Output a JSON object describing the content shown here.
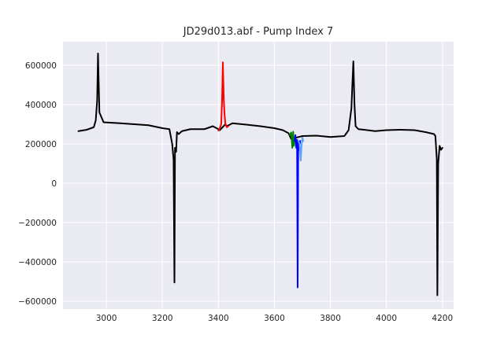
{
  "chart_data": {
    "type": "line",
    "title": "JD29d013.abf - Pump Index 7",
    "xlabel": "",
    "ylabel": "",
    "xlim": [
      2845,
      4240
    ],
    "ylim": [
      -640000,
      720000
    ],
    "grid": true,
    "background": "#eaeaf2",
    "xticks": [
      3000,
      3200,
      3400,
      3600,
      3800,
      4000,
      4200
    ],
    "xtick_labels": [
      "3000",
      "3200",
      "3400",
      "3600",
      "3800",
      "4000",
      "4200"
    ],
    "yticks": [
      600000,
      400000,
      200000,
      0,
      -200000,
      -400000,
      -600000
    ],
    "ytick_labels": [
      "600000",
      "400000",
      "200000",
      "0",
      "−200000",
      "−400000",
      "−600000"
    ],
    "series": [
      {
        "color": "#000000",
        "x": [
          2900,
          2930,
          2955,
          2962,
          2967,
          2970,
          2975,
          2990,
          3050,
          3100,
          3150,
          3200,
          3225,
          3235,
          3240,
          3243,
          3245,
          3249,
          3252,
          3258,
          3270,
          3300,
          3350,
          3380,
          3400,
          3405,
          3425,
          3430,
          3450,
          3500,
          3550,
          3600,
          3630,
          3650,
          3660,
          3700,
          3750,
          3800,
          3850,
          3865,
          3875,
          3882,
          3886,
          3890,
          3900,
          3920,
          3960,
          4000,
          4050,
          4100,
          4140,
          4170,
          4175,
          4180,
          4182,
          4185,
          4190,
          4195,
          4200
        ],
        "y": [
          265000,
          272000,
          285000,
          320000,
          420000,
          660000,
          360000,
          310000,
          305000,
          300000,
          295000,
          280000,
          275000,
          200000,
          120000,
          -505000,
          180000,
          160000,
          260000,
          250000,
          265000,
          275000,
          275000,
          290000,
          275000,
          270000,
          300000,
          290000,
          305000,
          298000,
          290000,
          280000,
          270000,
          255000,
          225000,
          240000,
          242000,
          235000,
          240000,
          270000,
          380000,
          620000,
          400000,
          290000,
          275000,
          272000,
          265000,
          270000,
          272000,
          270000,
          260000,
          250000,
          240000,
          120000,
          -570000,
          100000,
          190000,
          170000,
          180000
        ]
      },
      {
        "color": "#ff0000",
        "x": [
          3400,
          3405,
          3410,
          3413,
          3416,
          3419,
          3422,
          3425,
          3430,
          3435
        ],
        "y": [
          268000,
          280000,
          300000,
          420000,
          615000,
          430000,
          350000,
          300000,
          285000,
          290000
        ]
      },
      {
        "color": "#008000",
        "x": [
          3655,
          3660,
          3664,
          3667,
          3670,
          3673
        ],
        "y": [
          245000,
          258000,
          180000,
          262000,
          190000,
          230000
        ]
      },
      {
        "color": "#0000ff",
        "x": [
          3672,
          3675,
          3678,
          3681,
          3683,
          3685,
          3688,
          3692
        ],
        "y": [
          215000,
          245000,
          180000,
          220000,
          -530000,
          210000,
          170000,
          215000
        ]
      },
      {
        "color": "#5fa0ff",
        "x": [
          3685,
          3690,
          3694,
          3697,
          3700,
          3703
        ],
        "y": [
          218000,
          200000,
          115000,
          190000,
          232000,
          215000
        ]
      }
    ]
  }
}
